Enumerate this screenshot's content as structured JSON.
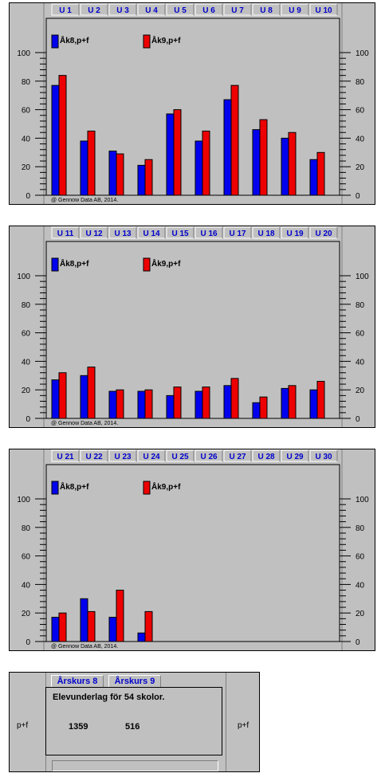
{
  "legend": {
    "series1_label": "Åk8,p+f",
    "series2_label": "Åk9,p+f",
    "series1_color": "#0000ee",
    "series2_color": "#ee0000"
  },
  "copyright": "@ Gennow Data AB, 2014.",
  "chart_data": [
    {
      "type": "bar",
      "categories": [
        "U 1",
        "U 2",
        "U 3",
        "U 4",
        "U 5",
        "U 6",
        "U 7",
        "U 8",
        "U 9",
        "U 10"
      ],
      "series": [
        {
          "name": "Åk8,p+f",
          "values": [
            77,
            38,
            31,
            21,
            57,
            38,
            67,
            46,
            40,
            25
          ]
        },
        {
          "name": "Åk9,p+f",
          "values": [
            84,
            45,
            29,
            25,
            60,
            45,
            77,
            53,
            44,
            30
          ]
        }
      ],
      "yticks": [
        0,
        20,
        40,
        60,
        80,
        100
      ],
      "ylim": [
        0,
        100
      ]
    },
    {
      "type": "bar",
      "categories": [
        "U 11",
        "U 12",
        "U 13",
        "U 14",
        "U 15",
        "U 16",
        "U 17",
        "U 18",
        "U 19",
        "U 20"
      ],
      "series": [
        {
          "name": "Åk8,p+f",
          "values": [
            27,
            30,
            19,
            19,
            16,
            19,
            23,
            11,
            21,
            20
          ]
        },
        {
          "name": "Åk9,p+f",
          "values": [
            32,
            36,
            20,
            20,
            22,
            22,
            28,
            15,
            23,
            26
          ]
        }
      ],
      "yticks": [
        0,
        20,
        40,
        60,
        80,
        100
      ],
      "ylim": [
        0,
        100
      ]
    },
    {
      "type": "bar",
      "categories": [
        "U 21",
        "U 22",
        "U 23",
        "U 24",
        "U 25",
        "U 26",
        "U 27",
        "U 28",
        "U 29",
        "U 30"
      ],
      "series": [
        {
          "name": "Åk8,p+f",
          "values": [
            17,
            30,
            17,
            6,
            null,
            null,
            null,
            null,
            null,
            null
          ]
        },
        {
          "name": "Åk9,p+f",
          "values": [
            20,
            21,
            36,
            21,
            null,
            null,
            null,
            null,
            null,
            null
          ]
        }
      ],
      "yticks": [
        0,
        20,
        40,
        60,
        80,
        100
      ],
      "ylim": [
        0,
        100
      ]
    }
  ],
  "summary": {
    "tab_grade8": "Årskurs 8",
    "tab_grade9": "Årskurs 9",
    "heading": "Elevunderlag för 54 skolor.",
    "side_label_left": "p+f",
    "side_label_right": "p+f",
    "count_grade8": "1359",
    "count_grade9": "516"
  }
}
